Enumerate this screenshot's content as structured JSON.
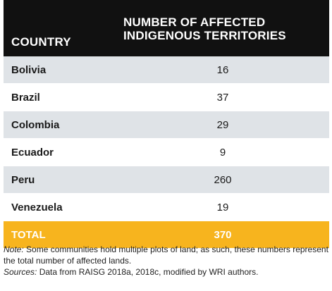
{
  "table": {
    "header": {
      "country": "COUNTRY",
      "value_line1": "NUMBER OF AFFECTED",
      "value_line2": "INDIGENOUS TERRITORIES"
    },
    "rows": [
      {
        "country": "Bolivia",
        "value": "16"
      },
      {
        "country": "Brazil",
        "value": "37"
      },
      {
        "country": "Colombia",
        "value": "29"
      },
      {
        "country": "Ecuador",
        "value": "9"
      },
      {
        "country": "Peru",
        "value": "260"
      },
      {
        "country": "Venezuela",
        "value": "19"
      }
    ],
    "total": {
      "label": "TOTAL",
      "value": "370"
    }
  },
  "notes": {
    "note_label": "Note:",
    "note_text": " Some communities hold multiple plots of land; as such, these numbers represent the total number of affected lands.",
    "sources_label": "Sources:",
    "sources_text": " Data from RAISG 2018a, 2018c, modified by WRI authors."
  },
  "colors": {
    "header_bg": "#111111",
    "shade_row": "#dfe3e7",
    "total_bg": "#f7b41e"
  }
}
